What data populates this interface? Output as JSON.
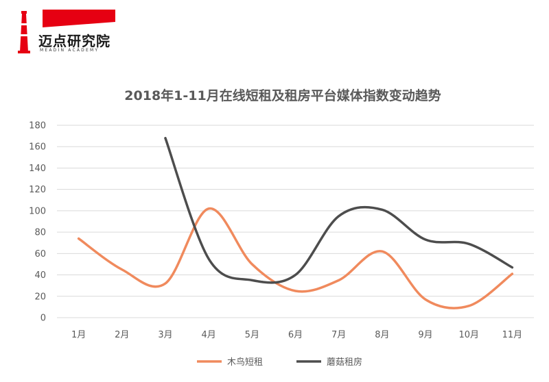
{
  "brand": {
    "name": "迈点研究院",
    "subtitle": "MEADIN ACADEMY"
  },
  "colors": {
    "brand_red": "#e60012",
    "series_1": "#f08a5d",
    "series_2": "#4d4d4d",
    "grid": "#d9d9d9",
    "text": "#595959"
  },
  "chart_data": {
    "type": "line",
    "title": "2018年1-11月在线短租及租房平台媒体指数变动趋势",
    "categories": [
      "1月",
      "2月",
      "3月",
      "4月",
      "5月",
      "6月",
      "7月",
      "8月",
      "9月",
      "10月",
      "11月"
    ],
    "series": [
      {
        "name": "木鸟短租",
        "values": [
          74,
          45,
          32,
          102,
          50,
          25,
          35,
          62,
          17,
          11,
          41
        ]
      },
      {
        "name": "蘑菇租房",
        "values": [
          null,
          null,
          168,
          55,
          35,
          40,
          95,
          101,
          73,
          69,
          47
        ]
      }
    ],
    "ylim": [
      0,
      180
    ],
    "yticks": [
      0,
      20,
      40,
      60,
      80,
      100,
      120,
      140,
      160,
      180
    ],
    "grid": true,
    "smooth": true,
    "legend_position": "bottom",
    "xlabel": "",
    "ylabel": ""
  }
}
